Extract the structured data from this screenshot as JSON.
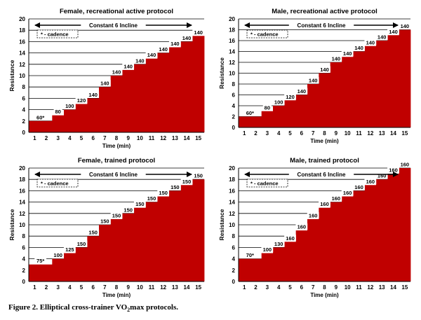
{
  "figure": {
    "caption_prefix": "Figure 2.  Elliptical cross-trainer VO",
    "caption_sub": "2",
    "caption_suffix": "max protocols."
  },
  "chart_data": [
    {
      "type": "bar",
      "title": "Female, recreational active protocol",
      "xlabel": "Time (min)",
      "ylabel": "Resistance",
      "ylim": [
        0,
        20
      ],
      "yticks": [
        0,
        2,
        4,
        6,
        8,
        10,
        12,
        14,
        16,
        18,
        20
      ],
      "categories": [
        "1",
        "2",
        "3",
        "4",
        "5",
        "6",
        "7",
        "8",
        "9",
        "10",
        "11",
        "12",
        "13",
        "14",
        "15"
      ],
      "values": [
        2,
        2,
        3,
        4,
        5,
        6,
        8,
        10,
        11,
        12,
        13,
        14,
        15,
        16,
        17
      ],
      "data_labels": [
        "60*",
        "",
        "80",
        "100",
        "120",
        "140",
        "140",
        "140",
        "140",
        "140",
        "140",
        "140",
        "140",
        "140",
        "140"
      ],
      "bar_color": "#c00000",
      "grid": true,
      "annotation": "Constant 6 Incline",
      "arrow_span": [
        1,
        15
      ],
      "legend_note": "* - cadence"
    },
    {
      "type": "bar",
      "title": "Male, recreational active protocol",
      "xlabel": "Time (min)",
      "ylabel": "Resistance",
      "ylim": [
        0,
        20
      ],
      "yticks": [
        0,
        2,
        4,
        6,
        8,
        10,
        12,
        14,
        16,
        18,
        20
      ],
      "categories": [
        "1",
        "2",
        "3",
        "4",
        "5",
        "6",
        "7",
        "8",
        "9",
        "10",
        "11",
        "12",
        "13",
        "14",
        "15"
      ],
      "values": [
        2,
        2,
        3,
        4,
        5,
        6,
        8,
        10,
        12,
        13,
        14,
        15,
        16,
        17,
        18
      ],
      "data_labels": [
        "60*",
        "",
        "80",
        "100",
        "120",
        "140",
        "140",
        "140",
        "140",
        "140",
        "140",
        "140",
        "140",
        "140",
        "140"
      ],
      "bar_color": "#c00000",
      "grid": true,
      "annotation": "Constant 6 Incline",
      "arrow_span": [
        1,
        15
      ],
      "legend_note": "* - cadence"
    },
    {
      "type": "bar",
      "title": "Female, trained protocol",
      "xlabel": "Time (min)",
      "ylabel": "Resistance",
      "ylim": [
        0,
        20
      ],
      "yticks": [
        0,
        2,
        4,
        6,
        8,
        10,
        12,
        14,
        16,
        18,
        20
      ],
      "categories": [
        "1",
        "2",
        "3",
        "4",
        "5",
        "6",
        "7",
        "8",
        "9",
        "10",
        "11",
        "12",
        "13",
        "14",
        "15"
      ],
      "values": [
        3,
        3,
        4,
        5,
        6,
        8,
        10,
        11,
        12,
        13,
        14,
        15,
        16,
        17,
        18
      ],
      "data_labels": [
        "75*",
        "",
        "100",
        "125",
        "150",
        "150",
        "150",
        "150",
        "150",
        "150",
        "150",
        "150",
        "150",
        "150",
        "150"
      ],
      "bar_color": "#c00000",
      "grid": true,
      "annotation": "Constant 6 Incline",
      "arrow_span": [
        1,
        15
      ],
      "legend_note": "* - cadence"
    },
    {
      "type": "bar",
      "title": "Male, trained protocol",
      "xlabel": "Time (min)",
      "ylabel": "Resistance",
      "ylim": [
        0,
        20
      ],
      "yticks": [
        0,
        2,
        4,
        6,
        8,
        10,
        12,
        14,
        16,
        18,
        20
      ],
      "categories": [
        "1",
        "2",
        "3",
        "4",
        "5",
        "6",
        "7",
        "8",
        "9",
        "10",
        "11",
        "12",
        "13",
        "14",
        "15"
      ],
      "values": [
        4,
        4,
        5,
        6,
        7,
        9,
        11,
        13,
        14,
        15,
        16,
        17,
        18,
        19,
        20
      ],
      "data_labels": [
        "70*",
        "",
        "100",
        "130",
        "160",
        "160",
        "160",
        "160",
        "160",
        "160",
        "160",
        "160",
        "160",
        "160",
        "160"
      ],
      "bar_color": "#c00000",
      "grid": true,
      "annotation": "Constant 6 Incline",
      "arrow_span": [
        1,
        15
      ],
      "legend_note": "* - cadence"
    }
  ]
}
